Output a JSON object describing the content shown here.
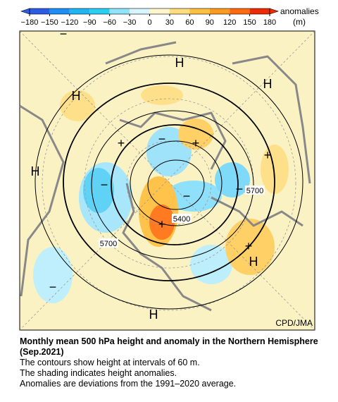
{
  "colorbar": {
    "ticks": [
      {
        "value": -180,
        "label": "−180"
      },
      {
        "value": -150,
        "label": "−150"
      },
      {
        "value": -120,
        "label": "−120"
      },
      {
        "value": -90,
        "label": "−90"
      },
      {
        "value": -60,
        "label": "−60"
      },
      {
        "value": -30,
        "label": "−30"
      },
      0,
      30,
      60,
      90,
      120,
      150,
      180
    ],
    "colors": [
      "#2b5ce6",
      "#1e8cf5",
      "#1fb4f2",
      "#2ccdf2",
      "#8fe3fb",
      "#d8f6ff",
      "#fff6cc",
      "#ffdd7a",
      "#ffc040",
      "#ff9a20",
      "#ff6a10",
      "#f02a00"
    ],
    "label": "anomalies",
    "unit": "(m)"
  },
  "map": {
    "symbols": [
      "H",
      "H",
      "H",
      "H",
      "H",
      "H",
      "+",
      "+",
      "+",
      "+",
      "+",
      "−",
      "−",
      "−",
      "−",
      "−",
      "−"
    ],
    "contour_labels": [
      "5700",
      "5400",
      "5700"
    ],
    "credit": "CPD/JMA"
  },
  "caption": {
    "title": "Monthly mean 500 hPa height and anomaly in the Northern Hemisphere (Sep.2021)",
    "lines": [
      "The contours show height at intervals of 60 m.",
      "The shading indicates height anomalies.",
      "Anomalies are deviations from the 1991–2020 average."
    ]
  }
}
